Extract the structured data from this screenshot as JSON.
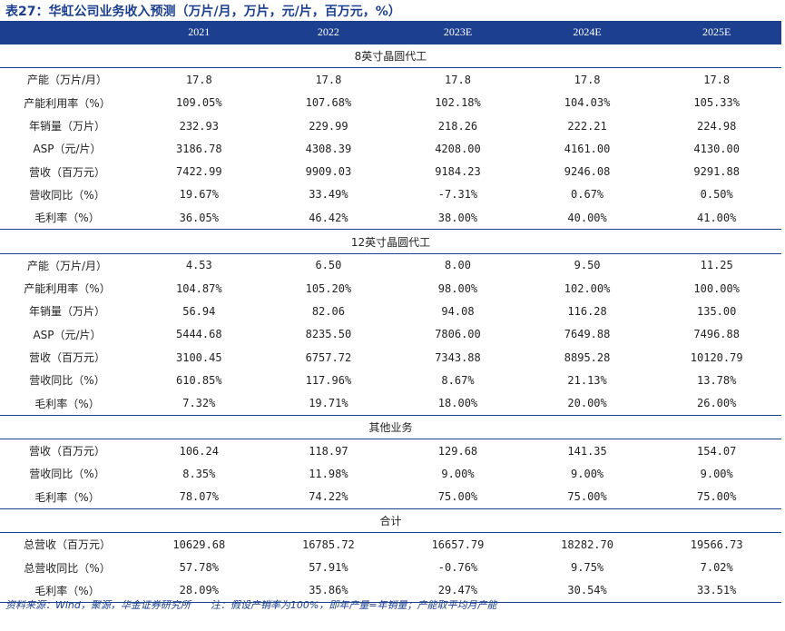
{
  "title": "表27：华虹公司业务收入预测（万片/月，万片，元/片，百万元，%）",
  "columns": [
    "",
    "2021",
    "2022",
    "2023E",
    "2024E",
    "2025E"
  ],
  "sections": [
    {
      "name": "8英寸晶圆代工",
      "rows": [
        {
          "label": "产能（万片/月）",
          "values": [
            "17.8",
            "17.8",
            "17.8",
            "17.8",
            "17.8"
          ]
        },
        {
          "label": "产能利用率（%）",
          "values": [
            "109.05%",
            "107.68%",
            "102.18%",
            "104.03%",
            "105.33%"
          ]
        },
        {
          "label": "年销量（万片）",
          "values": [
            "232.93",
            "229.99",
            "218.26",
            "222.21",
            "224.98"
          ]
        },
        {
          "label": "ASP（元/片）",
          "values": [
            "3186.78",
            "4308.39",
            "4208.00",
            "4161.00",
            "4130.00"
          ]
        },
        {
          "label": "营收（百万元）",
          "values": [
            "7422.99",
            "9909.03",
            "9184.23",
            "9246.08",
            "9291.88"
          ]
        },
        {
          "label": "营收同比（%）",
          "values": [
            "19.67%",
            "33.49%",
            "-7.31%",
            "0.67%",
            "0.50%"
          ]
        },
        {
          "label": "毛利率（%）",
          "values": [
            "36.05%",
            "46.42%",
            "38.00%",
            "40.00%",
            "41.00%"
          ]
        }
      ]
    },
    {
      "name": "12英寸晶圆代工",
      "rows": [
        {
          "label": "产能（万片/月）",
          "values": [
            "4.53",
            "6.50",
            "8.00",
            "9.50",
            "11.25"
          ]
        },
        {
          "label": "产能利用率（%）",
          "values": [
            "104.87%",
            "105.20%",
            "98.00%",
            "102.00%",
            "100.00%"
          ]
        },
        {
          "label": "年销量（万片）",
          "values": [
            "56.94",
            "82.06",
            "94.08",
            "116.28",
            "135.00"
          ]
        },
        {
          "label": "ASP（元/片）",
          "values": [
            "5444.68",
            "8235.50",
            "7806.00",
            "7649.88",
            "7496.88"
          ]
        },
        {
          "label": "营收（百万元）",
          "values": [
            "3100.45",
            "6757.72",
            "7343.88",
            "8895.28",
            "10120.79"
          ]
        },
        {
          "label": "营收同比（%）",
          "values": [
            "610.85%",
            "117.96%",
            "8.67%",
            "21.13%",
            "13.78%"
          ]
        },
        {
          "label": "毛利率（%）",
          "values": [
            "7.32%",
            "19.71%",
            "18.00%",
            "20.00%",
            "26.00%"
          ]
        }
      ]
    },
    {
      "name": "其他业务",
      "rows": [
        {
          "label": "营收（百万元）",
          "values": [
            "106.24",
            "118.97",
            "129.68",
            "141.35",
            "154.07"
          ]
        },
        {
          "label": "营收同比（%）",
          "values": [
            "8.35%",
            "11.98%",
            "9.00%",
            "9.00%",
            "9.00%"
          ]
        },
        {
          "label": "毛利率（%）",
          "values": [
            "78.07%",
            "74.22%",
            "75.00%",
            "75.00%",
            "75.00%"
          ]
        }
      ]
    },
    {
      "name": "合计",
      "rows": [
        {
          "label": "总营收（百万元）",
          "values": [
            "10629.68",
            "16785.72",
            "16657.79",
            "18282.70",
            "19566.73"
          ]
        },
        {
          "label": "总营收同比（%）",
          "values": [
            "57.78%",
            "57.91%",
            "-0.76%",
            "9.75%",
            "7.02%"
          ]
        },
        {
          "label": "毛利率（%）",
          "values": [
            "28.09%",
            "35.86%",
            "29.47%",
            "30.54%",
            "33.51%"
          ]
        }
      ]
    }
  ],
  "footer": {
    "source": "资料来源：Wind，聚源，华金证券研究所",
    "note": "注：假设产销率为100%，即年产量=年销量；产能取平均月产能"
  },
  "colors": {
    "header_bg": "#1c3f8f",
    "accent": "#1c3f8f"
  }
}
